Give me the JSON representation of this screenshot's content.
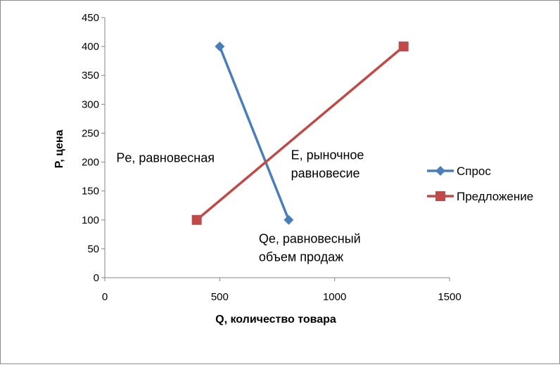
{
  "chart_data": {
    "type": "line",
    "xlabel": "Q, количество товара",
    "ylabel": "P, цена",
    "xlim": [
      0,
      1500
    ],
    "ylim": [
      0,
      450
    ],
    "x_ticks": [
      0,
      500,
      1000,
      1500
    ],
    "y_ticks": [
      0,
      50,
      100,
      150,
      200,
      250,
      300,
      350,
      400,
      450
    ],
    "grid": false,
    "legend_position": "right",
    "series": [
      {
        "name": "Спрос",
        "color": "#4a7ebb",
        "marker": "diamond",
        "points": [
          {
            "x": 500,
            "y": 400
          },
          {
            "x": 800,
            "y": 100
          }
        ]
      },
      {
        "name": "Предложение",
        "color": "#be4b48",
        "marker": "square",
        "points": [
          {
            "x": 400,
            "y": 100
          },
          {
            "x": 1300,
            "y": 400
          }
        ]
      }
    ],
    "annotations": [
      {
        "lines": [
          "Pe, равновесная"
        ],
        "x": 50,
        "y": 200
      },
      {
        "lines": [
          "E, рыночное",
          "равновесие"
        ],
        "x": 810,
        "y": 205
      },
      {
        "lines": [
          "Qe, равновесный",
          "объем продаж"
        ],
        "x": 670,
        "y": 60
      }
    ]
  }
}
